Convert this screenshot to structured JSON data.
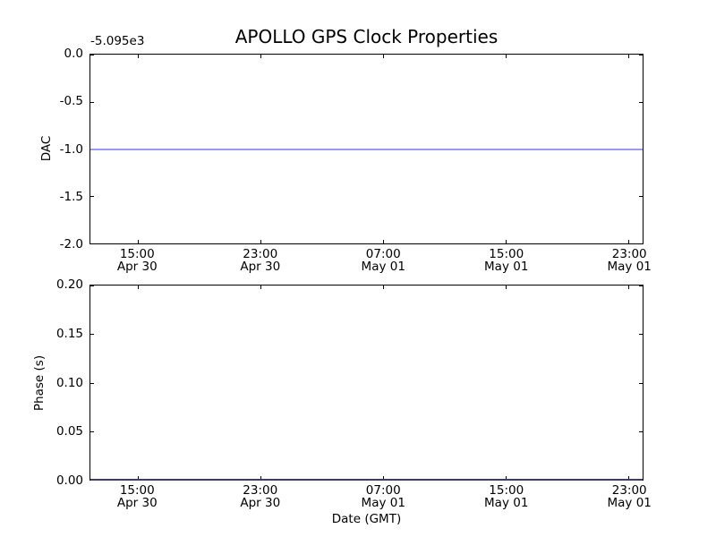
{
  "figure": {
    "background": "#ffffff",
    "axis_color": "#000000",
    "text_color": "#000000"
  },
  "chart_data": [
    {
      "type": "line",
      "title": "APOLLO GPS Clock Properties",
      "ylabel": "DAC",
      "xlabel": "",
      "y_offset_text": "-5.095e3",
      "ylim": [
        -2.0,
        0.0
      ],
      "yticks": [
        "0.0",
        "-0.5",
        "-1.0",
        "-1.5",
        "-2.0"
      ],
      "xticks": [
        {
          "time": "15:00",
          "date": "Apr 30",
          "pos": 0.0861
        },
        {
          "time": "23:00",
          "date": "Apr 30",
          "pos": 0.3082
        },
        {
          "time": "07:00",
          "date": "May 01",
          "pos": 0.5303
        },
        {
          "time": "15:00",
          "date": "May 01",
          "pos": 0.7524
        },
        {
          "time": "23:00",
          "date": "May 01",
          "pos": 0.9745
        }
      ],
      "grid": false,
      "legend": null,
      "series": [
        {
          "name": "DAC",
          "constant_y": -1.0,
          "line_color": "#9a9af2"
        }
      ]
    },
    {
      "type": "line",
      "title": "",
      "ylabel": "Phase (s)",
      "xlabel": "Date (GMT)",
      "y_offset_text": "",
      "ylim": [
        0.0,
        0.2
      ],
      "yticks": [
        "0.20",
        "0.15",
        "0.10",
        "0.05",
        "0.00"
      ],
      "xticks": [
        {
          "time": "15:00",
          "date": "Apr 30",
          "pos": 0.0861
        },
        {
          "time": "23:00",
          "date": "Apr 30",
          "pos": 0.3082
        },
        {
          "time": "07:00",
          "date": "May 01",
          "pos": 0.5303
        },
        {
          "time": "15:00",
          "date": "May 01",
          "pos": 0.7524
        },
        {
          "time": "23:00",
          "date": "May 01",
          "pos": 0.9745
        }
      ],
      "grid": false,
      "legend": null,
      "series": [
        {
          "name": "Phase",
          "constant_y": 0.0,
          "line_color": "#3d3d68"
        }
      ]
    }
  ]
}
